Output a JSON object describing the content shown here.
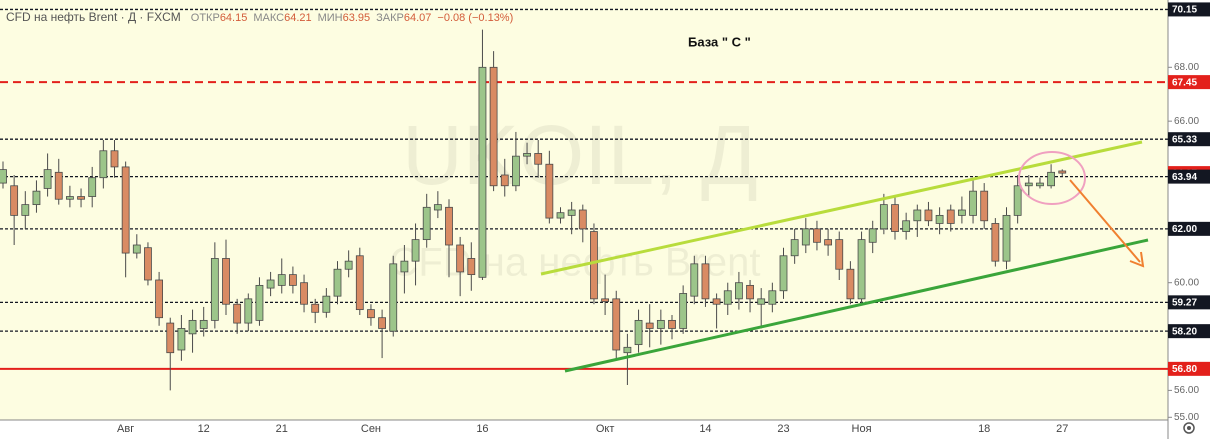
{
  "chart_data": {
    "type": "candlestick",
    "title": "CFD на нефть Brent · Д · FXCM",
    "stats": [
      {
        "name": "ОТКР",
        "value": 64.15
      },
      {
        "name": "МАКС",
        "value": 64.21
      },
      {
        "name": "МИН",
        "value": 63.95
      },
      {
        "name": "ЗАКР",
        "value": 64.07
      }
    ],
    "change": "−0.08 (−0.13%)",
    "annotation": "База  \" С \"",
    "watermark": [
      "UKOIL, Д",
      "CFD на нефть Brent"
    ],
    "categories": [
      null,
      null,
      null,
      null,
      null,
      null,
      null,
      null,
      null,
      null,
      null,
      "Авг",
      null,
      null,
      null,
      null,
      null,
      null,
      "12",
      null,
      null,
      null,
      null,
      null,
      null,
      "21",
      null,
      null,
      null,
      null,
      null,
      null,
      null,
      "Сен",
      null,
      null,
      null,
      null,
      null,
      null,
      null,
      null,
      null,
      "16",
      null,
      null,
      null,
      null,
      null,
      null,
      null,
      null,
      null,
      null,
      "Окт",
      null,
      null,
      null,
      null,
      null,
      null,
      null,
      null,
      "14",
      null,
      null,
      null,
      null,
      null,
      null,
      "23",
      null,
      null,
      null,
      null,
      null,
      null,
      "Ноя",
      null,
      null,
      null,
      null,
      null,
      null,
      null,
      null,
      null,
      null,
      "18",
      null,
      null,
      null,
      null,
      null,
      null,
      "27"
    ],
    "open": [
      63.7,
      63.6,
      62.5,
      62.9,
      63.5,
      64.1,
      63.1,
      63.2,
      63.2,
      63.9,
      64.9,
      64.3,
      61.1,
      61.3,
      60.1,
      58.5,
      57.5,
      58.1,
      58.3,
      58.6,
      60.9,
      59.2,
      58.5,
      58.6,
      59.8,
      59.9,
      60.3,
      60.0,
      59.2,
      58.9,
      59.5,
      60.5,
      61.0,
      59.0,
      58.7,
      58.2,
      60.4,
      60.8,
      61.6,
      62.7,
      62.8,
      61.4,
      60.9,
      60.2,
      68.0,
      64.0,
      63.6,
      64.7,
      64.8,
      64.4,
      62.4,
      62.5,
      62.7,
      61.9,
      59.4,
      59.4,
      57.4,
      57.7,
      58.5,
      58.3,
      58.6,
      58.3,
      59.5,
      60.7,
      59.4,
      59.2,
      59.4,
      59.9,
      59.2,
      59.2,
      59.7,
      61.0,
      61.4,
      62.0,
      61.6,
      61.6,
      60.5,
      59.4,
      61.5,
      62.0,
      62.9,
      61.9,
      62.3,
      62.7,
      62.2,
      62.7,
      62.5,
      62.5,
      63.4,
      62.2,
      60.8,
      62.5,
      63.6,
      63.6,
      63.6,
      64.15
    ],
    "high": [
      64.5,
      64.0,
      63.4,
      63.8,
      64.8,
      64.6,
      63.6,
      63.5,
      64.3,
      65.3,
      65.3,
      64.5,
      61.8,
      61.5,
      60.4,
      58.7,
      58.8,
      59.0,
      59.1,
      61.5,
      61.6,
      59.4,
      59.6,
      60.2,
      60.4,
      60.9,
      60.6,
      60.3,
      59.4,
      59.8,
      60.8,
      61.2,
      61.3,
      59.2,
      59.0,
      61.0,
      61.4,
      62.2,
      63.3,
      63.4,
      63.1,
      61.7,
      61.5,
      69.4,
      68.6,
      64.6,
      65.6,
      65.2,
      65.3,
      64.9,
      62.8,
      63.0,
      62.9,
      62.2,
      60.3,
      59.7,
      58.1,
      59.0,
      59.2,
      59.0,
      58.8,
      59.9,
      61.0,
      61.0,
      59.6,
      60.0,
      60.4,
      60.1,
      59.8,
      60.0,
      61.3,
      62.0,
      62.4,
      62.3,
      62.0,
      61.9,
      60.8,
      61.9,
      62.3,
      63.3,
      63.2,
      62.6,
      62.9,
      63.0,
      62.8,
      62.9,
      63.2,
      63.8,
      63.7,
      62.4,
      62.8,
      64.0,
      64.0,
      63.9,
      64.4,
      64.21
    ],
    "low": [
      63.5,
      61.4,
      62.0,
      62.6,
      63.2,
      62.9,
      62.8,
      62.8,
      62.8,
      63.5,
      63.9,
      60.2,
      60.9,
      59.9,
      58.4,
      56.0,
      57.1,
      57.4,
      58.0,
      58.3,
      58.8,
      58.1,
      58.2,
      58.4,
      59.5,
      59.6,
      59.6,
      58.9,
      58.5,
      58.7,
      59.2,
      60.2,
      58.8,
      58.4,
      57.2,
      58.0,
      59.6,
      59.9,
      61.3,
      62.4,
      60.2,
      59.5,
      59.7,
      60.1,
      63.4,
      63.2,
      63.4,
      64.4,
      63.9,
      62.2,
      62.2,
      61.8,
      61.5,
      59.2,
      58.8,
      57.2,
      56.2,
      57.4,
      57.6,
      57.7,
      57.9,
      58.1,
      59.2,
      59.1,
      58.3,
      58.8,
      59.0,
      58.9,
      58.3,
      58.9,
      59.4,
      60.7,
      61.1,
      61.2,
      61.0,
      60.1,
      59.2,
      59.2,
      61.1,
      61.8,
      61.6,
      61.6,
      61.7,
      62.1,
      61.8,
      61.9,
      62.2,
      62.2,
      62.0,
      60.6,
      60.5,
      62.2,
      63.2,
      63.5,
      63.5,
      63.95
    ],
    "close": [
      64.2,
      62.5,
      62.9,
      63.4,
      64.2,
      63.1,
      63.2,
      63.1,
      63.9,
      64.9,
      64.3,
      61.1,
      61.4,
      60.1,
      58.7,
      57.4,
      58.3,
      58.6,
      58.6,
      60.9,
      59.2,
      58.5,
      59.4,
      59.9,
      60.1,
      60.3,
      59.9,
      59.2,
      58.9,
      59.5,
      60.5,
      60.8,
      59.0,
      58.7,
      58.3,
      60.7,
      60.8,
      61.6,
      62.8,
      62.9,
      61.4,
      60.4,
      60.3,
      68.0,
      63.6,
      63.6,
      64.7,
      64.8,
      64.4,
      62.4,
      62.6,
      62.7,
      62.0,
      59.4,
      59.3,
      57.5,
      57.6,
      58.6,
      58.3,
      58.6,
      58.3,
      59.6,
      60.7,
      59.4,
      59.2,
      59.7,
      60.0,
      59.4,
      59.4,
      59.7,
      61.0,
      61.6,
      62.0,
      61.5,
      61.4,
      60.5,
      59.4,
      61.6,
      62.0,
      62.9,
      61.9,
      62.3,
      62.7,
      62.3,
      62.5,
      62.2,
      62.7,
      63.4,
      62.3,
      60.8,
      62.5,
      63.6,
      63.7,
      63.7,
      64.1,
      64.07
    ],
    "up_color": "#9cc58a",
    "down_color": "#d98b63",
    "ylim": [
      54.9,
      70.5
    ],
    "yticks": [
      {
        "value": 55,
        "label": "55.00"
      },
      {
        "value": 56,
        "label": "56.00"
      },
      {
        "value": 60,
        "label": "60.00"
      },
      {
        "value": 66,
        "label": "66.00"
      },
      {
        "value": 68,
        "label": "68.00"
      }
    ],
    "levels": [
      {
        "price": 70.15,
        "color": "#131722",
        "style": "dotted"
      },
      {
        "price": 67.45,
        "color": "#e3201b",
        "style": "dashed"
      },
      {
        "price": 65.33,
        "color": "#131722",
        "style": "dotted"
      },
      {
        "price": 64.07,
        "color": "#e3201b",
        "style": "none"
      },
      {
        "price": 63.94,
        "color": "#131722",
        "style": "dotted"
      },
      {
        "price": 62,
        "label": "62.00",
        "color": "#131722",
        "style": "dotted"
      },
      {
        "price": 59.27,
        "color": "#131722",
        "style": "dotted"
      },
      {
        "price": 58.2,
        "label": "58.20",
        "color": "#131722",
        "style": "dotted"
      },
      {
        "price": 56.8,
        "label": "56.80",
        "color": "#e3201b",
        "style": "solid"
      }
    ]
  }
}
